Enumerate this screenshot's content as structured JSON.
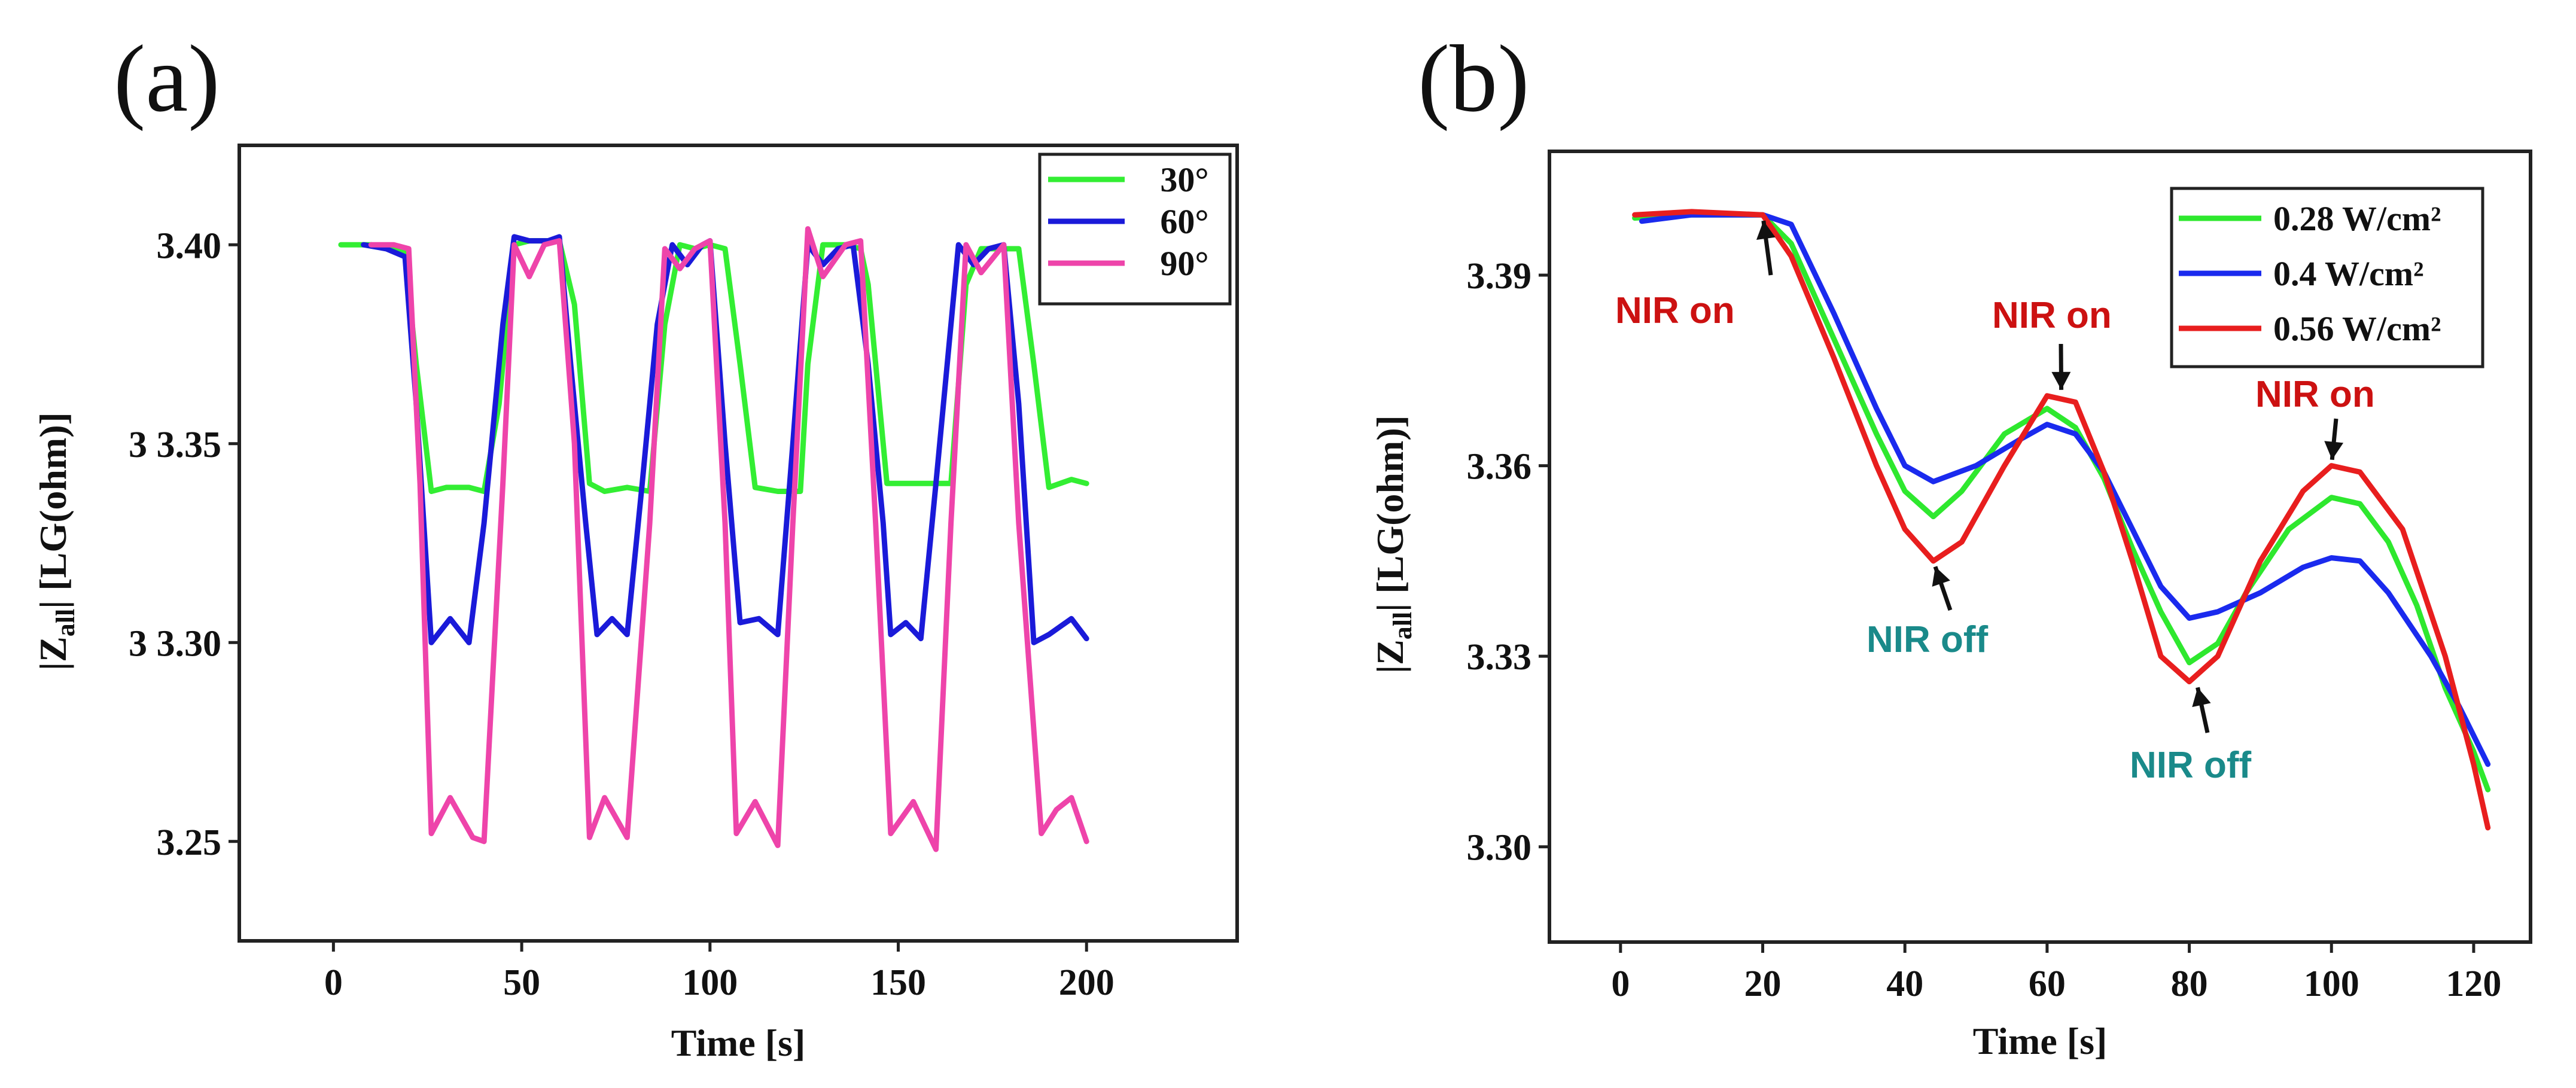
{
  "chart_data": [
    {
      "panel_label": "(a)",
      "type": "line",
      "xlabel": "Time [s]",
      "ylabel_parts": [
        "|Z",
        "all",
        "| [LG(ohm)]"
      ],
      "xlim": [
        -25,
        240
      ],
      "ylim": [
        3.225,
        3.425
      ],
      "xticks": [
        0,
        50,
        100,
        150,
        200
      ],
      "yticks": [
        3.25,
        3.3,
        3.35,
        3.4
      ],
      "ytick_labels": [
        "3.25",
        "3 3.30",
        "3 3.35",
        "3.40"
      ],
      "legend_position": "top-right",
      "series": [
        {
          "name": "30°",
          "color": "#33ee33",
          "points": [
            [
              2,
              3.4
            ],
            [
              10,
              3.4
            ],
            [
              16,
              3.399
            ],
            [
              19,
              3.398
            ],
            [
              22,
              3.37
            ],
            [
              26,
              3.338
            ],
            [
              30,
              3.339
            ],
            [
              36,
              3.339
            ],
            [
              40,
              3.338
            ],
            [
              44,
              3.36
            ],
            [
              48,
              3.4
            ],
            [
              52,
              3.401
            ],
            [
              56,
              3.401
            ],
            [
              60,
              3.401
            ],
            [
              64,
              3.385
            ],
            [
              68,
              3.34
            ],
            [
              72,
              3.338
            ],
            [
              78,
              3.339
            ],
            [
              84,
              3.338
            ],
            [
              88,
              3.38
            ],
            [
              92,
              3.4
            ],
            [
              96,
              3.399
            ],
            [
              100,
              3.4
            ],
            [
              104,
              3.399
            ],
            [
              108,
              3.37
            ],
            [
              112,
              3.339
            ],
            [
              118,
              3.338
            ],
            [
              124,
              3.338
            ],
            [
              126,
              3.37
            ],
            [
              130,
              3.4
            ],
            [
              136,
              3.4
            ],
            [
              140,
              3.399
            ],
            [
              142,
              3.39
            ],
            [
              147,
              3.34
            ],
            [
              152,
              3.34
            ],
            [
              158,
              3.34
            ],
            [
              164,
              3.34
            ],
            [
              168,
              3.39
            ],
            [
              172,
              3.399
            ],
            [
              178,
              3.399
            ],
            [
              182,
              3.399
            ],
            [
              186,
              3.37
            ],
            [
              190,
              3.339
            ],
            [
              196,
              3.341
            ],
            [
              200,
              3.34
            ]
          ]
        },
        {
          "name": "60°",
          "color": "#1a1ad9",
          "points": [
            [
              8,
              3.4
            ],
            [
              14,
              3.399
            ],
            [
              19,
              3.397
            ],
            [
              22,
              3.36
            ],
            [
              26,
              3.3
            ],
            [
              31,
              3.306
            ],
            [
              36,
              3.3
            ],
            [
              40,
              3.33
            ],
            [
              45,
              3.38
            ],
            [
              48,
              3.402
            ],
            [
              52,
              3.401
            ],
            [
              57,
              3.401
            ],
            [
              60,
              3.402
            ],
            [
              63,
              3.37
            ],
            [
              67,
              3.33
            ],
            [
              70,
              3.302
            ],
            [
              74,
              3.306
            ],
            [
              78,
              3.302
            ],
            [
              82,
              3.34
            ],
            [
              86,
              3.38
            ],
            [
              90,
              3.4
            ],
            [
              94,
              3.395
            ],
            [
              98,
              3.4
            ],
            [
              100,
              3.401
            ],
            [
              104,
              3.35
            ],
            [
              108,
              3.305
            ],
            [
              113,
              3.306
            ],
            [
              118,
              3.302
            ],
            [
              122,
              3.35
            ],
            [
              126,
              3.4
            ],
            [
              130,
              3.395
            ],
            [
              134,
              3.399
            ],
            [
              138,
              3.4
            ],
            [
              142,
              3.37
            ],
            [
              146,
              3.33
            ],
            [
              148,
              3.302
            ],
            [
              152,
              3.305
            ],
            [
              156,
              3.301
            ],
            [
              160,
              3.34
            ],
            [
              166,
              3.4
            ],
            [
              170,
              3.395
            ],
            [
              174,
              3.399
            ],
            [
              178,
              3.4
            ],
            [
              182,
              3.36
            ],
            [
              186,
              3.3
            ],
            [
              190,
              3.302
            ],
            [
              196,
              3.306
            ],
            [
              200,
              3.301
            ]
          ]
        },
        {
          "name": "90°",
          "color": "#ee44aa",
          "points": [
            [
              10,
              3.4
            ],
            [
              16,
              3.4
            ],
            [
              20,
              3.399
            ],
            [
              23,
              3.34
            ],
            [
              26,
              3.252
            ],
            [
              31,
              3.261
            ],
            [
              37,
              3.251
            ],
            [
              40,
              3.25
            ],
            [
              45,
              3.34
            ],
            [
              48,
              3.4
            ],
            [
              52,
              3.392
            ],
            [
              56,
              3.4
            ],
            [
              60,
              3.401
            ],
            [
              64,
              3.35
            ],
            [
              68,
              3.251
            ],
            [
              72,
              3.261
            ],
            [
              78,
              3.251
            ],
            [
              84,
              3.33
            ],
            [
              88,
              3.399
            ],
            [
              92,
              3.394
            ],
            [
              96,
              3.399
            ],
            [
              100,
              3.401
            ],
            [
              104,
              3.33
            ],
            [
              107,
              3.252
            ],
            [
              112,
              3.26
            ],
            [
              118,
              3.249
            ],
            [
              122,
              3.33
            ],
            [
              126,
              3.404
            ],
            [
              130,
              3.392
            ],
            [
              136,
              3.4
            ],
            [
              140,
              3.401
            ],
            [
              144,
              3.33
            ],
            [
              148,
              3.252
            ],
            [
              154,
              3.26
            ],
            [
              160,
              3.248
            ],
            [
              164,
              3.33
            ],
            [
              168,
              3.4
            ],
            [
              172,
              3.393
            ],
            [
              178,
              3.4
            ],
            [
              182,
              3.33
            ],
            [
              188,
              3.252
            ],
            [
              192,
              3.258
            ],
            [
              196,
              3.261
            ],
            [
              200,
              3.25
            ]
          ]
        }
      ]
    },
    {
      "panel_label": "(b)",
      "type": "line",
      "xlabel": "Time [s]",
      "ylabel_parts": [
        "|Z",
        "all",
        "| [LG(ohm)]"
      ],
      "xlim": [
        -10,
        128
      ],
      "ylim": [
        3.285,
        3.4095
      ],
      "xticks": [
        0,
        20,
        40,
        60,
        80,
        100,
        120
      ],
      "yticks": [
        3.3,
        3.33,
        3.36,
        3.39
      ],
      "ytick_labels": [
        "3.30",
        "3.33",
        "3.36",
        "3.39"
      ],
      "legend_position": "top-right",
      "series": [
        {
          "name": "0.28 W/cm²",
          "color": "#2ee82e",
          "points": [
            [
              2,
              3.399
            ],
            [
              10,
              3.3995
            ],
            [
              20,
              3.3995
            ],
            [
              24,
              3.395
            ],
            [
              30,
              3.38
            ],
            [
              36,
              3.365
            ],
            [
              40,
              3.356
            ],
            [
              44,
              3.352
            ],
            [
              48,
              3.356
            ],
            [
              54,
              3.365
            ],
            [
              60,
              3.369
            ],
            [
              64,
              3.366
            ],
            [
              68,
              3.358
            ],
            [
              72,
              3.347
            ],
            [
              76,
              3.337
            ],
            [
              80,
              3.329
            ],
            [
              84,
              3.332
            ],
            [
              88,
              3.34
            ],
            [
              94,
              3.35
            ],
            [
              100,
              3.355
            ],
            [
              104,
              3.354
            ],
            [
              108,
              3.348
            ],
            [
              112,
              3.338
            ],
            [
              116,
              3.325
            ],
            [
              120,
              3.315
            ],
            [
              122,
              3.309
            ]
          ]
        },
        {
          "name": "0.4 W/cm²",
          "color": "#1a2aee",
          "points": [
            [
              3,
              3.3985
            ],
            [
              10,
              3.3995
            ],
            [
              20,
              3.3995
            ],
            [
              24,
              3.398
            ],
            [
              30,
              3.384
            ],
            [
              36,
              3.369
            ],
            [
              40,
              3.36
            ],
            [
              44,
              3.3575
            ],
            [
              50,
              3.36
            ],
            [
              56,
              3.364
            ],
            [
              60,
              3.3665
            ],
            [
              64,
              3.365
            ],
            [
              68,
              3.359
            ],
            [
              72,
              3.35
            ],
            [
              76,
              3.341
            ],
            [
              80,
              3.336
            ],
            [
              84,
              3.337
            ],
            [
              90,
              3.34
            ],
            [
              96,
              3.344
            ],
            [
              100,
              3.3455
            ],
            [
              104,
              3.345
            ],
            [
              108,
              3.34
            ],
            [
              114,
              3.33
            ],
            [
              118,
              3.322
            ],
            [
              122,
              3.313
            ]
          ]
        },
        {
          "name": "0.56 W/cm²",
          "color": "#e81e1e",
          "points": [
            [
              2,
              3.3995
            ],
            [
              10,
              3.4
            ],
            [
              20,
              3.3995
            ],
            [
              24,
              3.393
            ],
            [
              30,
              3.377
            ],
            [
              36,
              3.36
            ],
            [
              40,
              3.35
            ],
            [
              44,
              3.345
            ],
            [
              48,
              3.348
            ],
            [
              54,
              3.36
            ],
            [
              60,
              3.371
            ],
            [
              64,
              3.37
            ],
            [
              68,
              3.359
            ],
            [
              72,
              3.345
            ],
            [
              76,
              3.33
            ],
            [
              80,
              3.326
            ],
            [
              84,
              3.33
            ],
            [
              90,
              3.345
            ],
            [
              96,
              3.356
            ],
            [
              100,
              3.36
            ],
            [
              104,
              3.359
            ],
            [
              110,
              3.35
            ],
            [
              116,
              3.33
            ],
            [
              120,
              3.313
            ],
            [
              122,
              3.303
            ]
          ]
        }
      ],
      "annotations": [
        {
          "text": "NIR on",
          "color": "#cc1111",
          "point": [
            20,
            3.3995
          ]
        },
        {
          "text": "NIR on",
          "color": "#cc1111",
          "point": [
            62,
            3.371
          ]
        },
        {
          "text": "NIR on",
          "color": "#cc1111",
          "point": [
            100,
            3.36
          ]
        },
        {
          "text": "NIR off",
          "color": "#1a8a8a",
          "point": [
            44,
            3.345
          ]
        },
        {
          "text": "NIR off",
          "color": "#1a8a8a",
          "point": [
            81,
            3.326
          ]
        }
      ]
    }
  ]
}
